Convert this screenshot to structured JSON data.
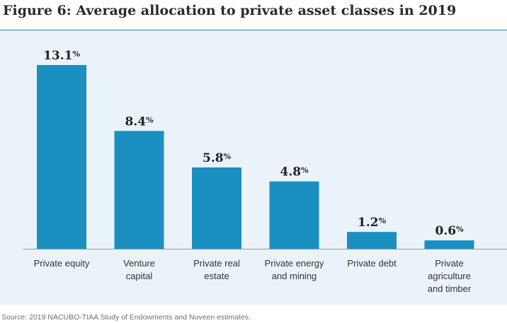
{
  "title": "Figure 6: Average allocation to private asset classes in 2019",
  "source": "Source: 2019 NACUBO-TIAA Study of Endowments and Nuveen estimates.",
  "colors": {
    "bar": "#1b8fc0",
    "panel_background": "#eaf3f9",
    "title_rule": "#2a8bb8",
    "baseline": "#9a9a9a"
  },
  "chart_data": {
    "type": "bar",
    "title": "Figure 6: Average allocation to private asset classes in 2019",
    "xlabel": "",
    "ylabel": "",
    "ylim": [
      0,
      14
    ],
    "grid": false,
    "unit": "%",
    "categories": [
      [
        "Private equity"
      ],
      [
        "Venture",
        "capital"
      ],
      [
        "Private real",
        "estate"
      ],
      [
        "Private energy",
        "and mining"
      ],
      [
        "Private debt"
      ],
      [
        "Private",
        "agriculture",
        "and timber"
      ]
    ],
    "values": [
      13.1,
      8.4,
      5.8,
      4.8,
      1.2,
      0.6
    ],
    "value_labels": [
      "13.1",
      "8.4",
      "5.8",
      "4.8",
      "1.2",
      "0.6"
    ]
  }
}
